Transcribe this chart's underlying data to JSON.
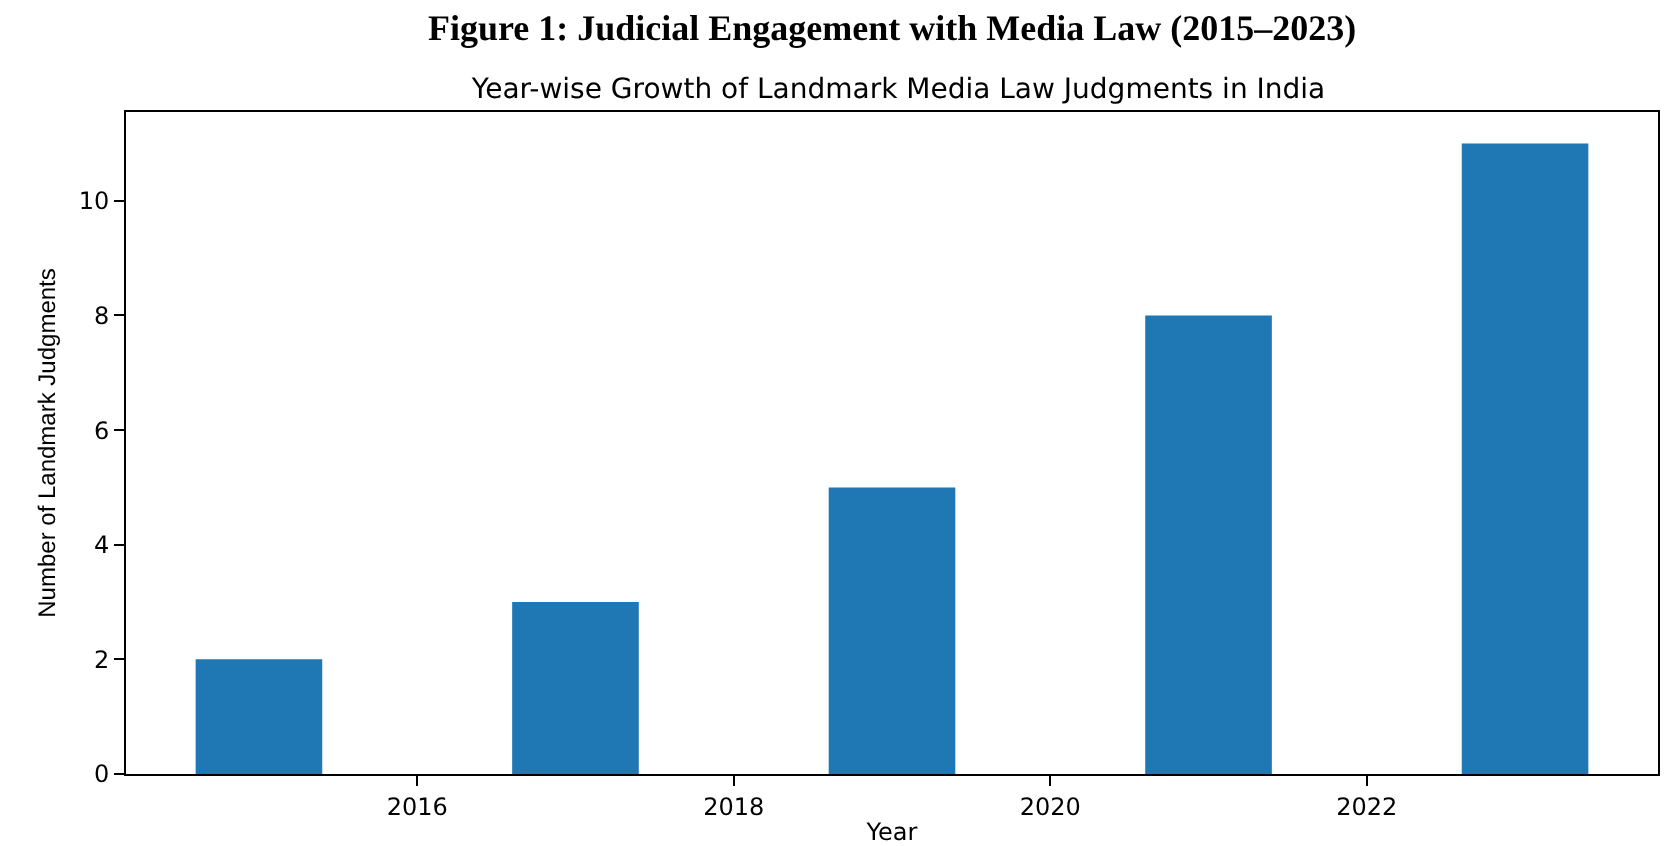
{
  "chart_data": {
    "type": "bar",
    "title": "Year-wise Growth of Landmark Media Law Judgments in India",
    "annotations": [
      "Figure 1: Judicial Engagement with Media Law (2015–2023)"
    ],
    "xlabel": "Year",
    "ylabel": "Number of Landmark Judgments",
    "x": [
      2015,
      2017,
      2019,
      2021,
      2023
    ],
    "values": [
      2,
      3,
      5,
      8,
      11
    ],
    "color": "#1f77b4",
    "xlim": [
      2014.16,
      2023.84
    ],
    "xticks": [
      2016,
      2018,
      2020,
      2022
    ],
    "ylim": [
      0,
      11.55
    ],
    "yticks": [
      0,
      2,
      4,
      6,
      8,
      10
    ]
  }
}
